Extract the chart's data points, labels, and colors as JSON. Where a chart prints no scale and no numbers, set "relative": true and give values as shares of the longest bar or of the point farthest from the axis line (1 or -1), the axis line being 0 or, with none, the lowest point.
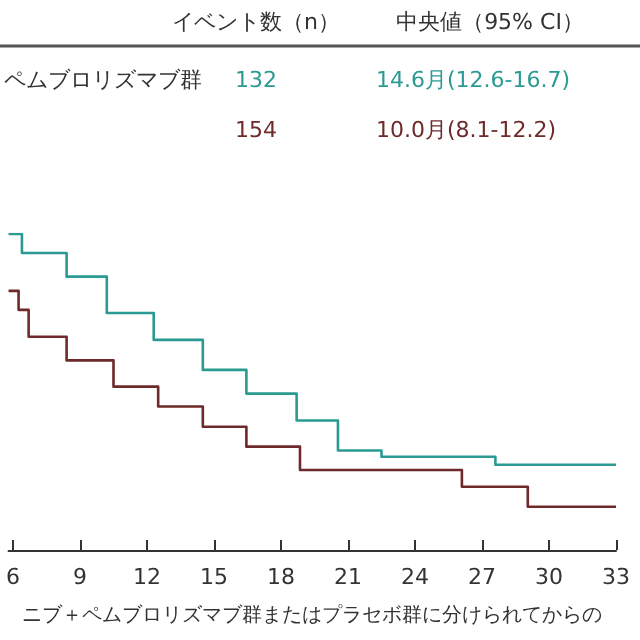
{
  "chart_data": {
    "type": "step",
    "relative": true,
    "xlabel": "ニブ＋ペムブロリズマブ群またはプラセボ群に分けられてからの",
    "xlim": [
      5.8,
      33
    ],
    "xticks": [
      6,
      9,
      12,
      15,
      18,
      21,
      24,
      27,
      30,
      33
    ],
    "annotations": [
      "イベント数（n）",
      "中央値（95% CI）",
      "ペムブロリズマブ群",
      "132",
      "14.6月(12.6-16.7)",
      "154",
      "10.0月(8.1-12.2)"
    ],
    "series": [
      {
        "color": "#2a9a92",
        "x": [
          5.8,
          6.4,
          8.4,
          10.2,
          12.3,
          14.5,
          16.45,
          18.7,
          20.55,
          22.5,
          27.6,
          33
        ],
        "values": [
          1.0,
          0.94,
          0.865,
          0.75,
          0.665,
          0.57,
          0.495,
          0.41,
          0.315,
          0.295,
          0.27,
          0.27
        ]
      },
      {
        "color": "#6e2a2a",
        "x": [
          5.8,
          6.25,
          6.7,
          8.4,
          10.5,
          12.5,
          14.5,
          16.45,
          18.85,
          26.1,
          29.05,
          33
        ],
        "values": [
          0.82,
          0.76,
          0.675,
          0.6,
          0.517,
          0.454,
          0.39,
          0.327,
          0.253,
          0.2,
          0.137,
          0.137
        ]
      }
    ]
  }
}
